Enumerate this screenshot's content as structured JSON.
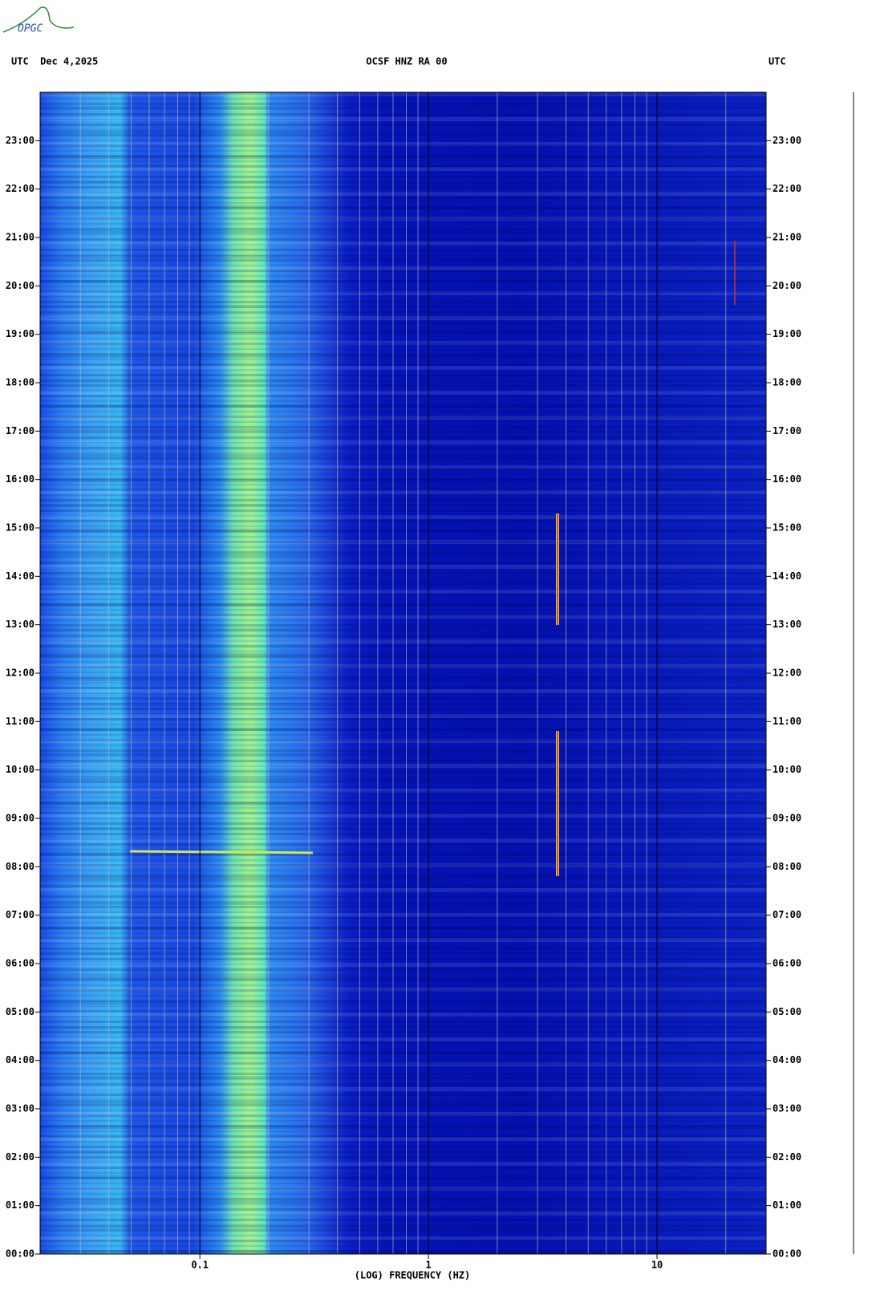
{
  "logo": "OPGC",
  "chart_data": {
    "type": "spectrogram",
    "title": "OCSF HNZ RA 00",
    "date_label": "UTC  Dec 4,2025",
    "right_label": "UTC",
    "x_label": "(LOG) FREQUENCY (HZ)",
    "x_log": true,
    "xlim": [
      0.02,
      30
    ],
    "xticks": [
      0.1,
      1,
      10
    ],
    "xgrid": [
      0.03,
      0.04,
      0.05,
      0.06,
      0.07,
      0.08,
      0.09,
      0.2,
      0.3,
      0.4,
      0.5,
      0.6,
      0.7,
      0.8,
      0.9,
      2,
      3,
      4,
      5,
      6,
      7,
      8,
      9,
      20
    ],
    "ylim": [
      0,
      24
    ],
    "yticks": [
      {
        "value": 0,
        "label": "00:00"
      },
      {
        "value": 1,
        "label": "01:00"
      },
      {
        "value": 2,
        "label": "02:00"
      },
      {
        "value": 3,
        "label": "03:00"
      },
      {
        "value": 4,
        "label": "04:00"
      },
      {
        "value": 5,
        "label": "05:00"
      },
      {
        "value": 6,
        "label": "06:00"
      },
      {
        "value": 7,
        "label": "07:00"
      },
      {
        "value": 8,
        "label": "08:00"
      },
      {
        "value": 9,
        "label": "09:00"
      },
      {
        "value": 10,
        "label": "10:00"
      },
      {
        "value": 11,
        "label": "11:00"
      },
      {
        "value": 12,
        "label": "12:00"
      },
      {
        "value": 13,
        "label": "13:00"
      },
      {
        "value": 14,
        "label": "14:00"
      },
      {
        "value": 15,
        "label": "15:00"
      },
      {
        "value": 16,
        "label": "16:00"
      },
      {
        "value": 17,
        "label": "17:00"
      },
      {
        "value": 18,
        "label": "18:00"
      },
      {
        "value": 19,
        "label": "19:00"
      },
      {
        "value": 20,
        "label": "20:00"
      },
      {
        "value": 21,
        "label": "21:00"
      },
      {
        "value": 22,
        "label": "22:00"
      },
      {
        "value": 23,
        "label": "23:00"
      }
    ]
  }
}
